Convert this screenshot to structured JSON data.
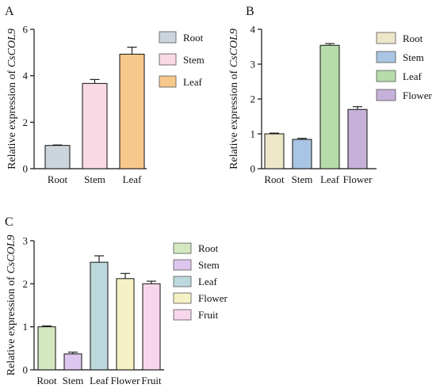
{
  "chart_data": [
    {
      "panel": "A",
      "type": "bar",
      "ylabel_prefix": "Relative expression of ",
      "ylabel_gene": "CsCOL9",
      "ylim": [
        0,
        6
      ],
      "yticks": [
        "0",
        "2",
        "4",
        "6"
      ],
      "categories": [
        "Root",
        "Stem",
        "Leaf"
      ],
      "values": [
        1.0,
        3.67,
        4.93
      ],
      "errors": [
        0.02,
        0.17,
        0.3
      ],
      "colors": [
        "#ccd4dc",
        "#f9d9e3",
        "#f7c88c"
      ],
      "legend": [
        {
          "label": "Root",
          "color": "#ccd4dc"
        },
        {
          "label": "Stem",
          "color": "#f9d9e3"
        },
        {
          "label": "Leaf",
          "color": "#f7c88c"
        }
      ],
      "legend_position": "right"
    },
    {
      "panel": "B",
      "type": "bar",
      "ylabel_prefix": "Relative expression of ",
      "ylabel_gene": "CsCOL9",
      "ylim": [
        0,
        4
      ],
      "yticks": [
        "0",
        "1",
        "2",
        "3",
        "4"
      ],
      "categories": [
        "Root",
        "Stem",
        "Leaf",
        "Flower"
      ],
      "values": [
        1.0,
        0.84,
        3.54,
        1.7
      ],
      "errors": [
        0.02,
        0.03,
        0.05,
        0.08
      ],
      "colors": [
        "#ede6c9",
        "#a9c5e3",
        "#b6dcab",
        "#c5b1d9"
      ],
      "legend": [
        {
          "label": "Root",
          "color": "#ede6c9"
        },
        {
          "label": "Stem",
          "color": "#a9c5e3"
        },
        {
          "label": "Leaf",
          "color": "#b6dcab"
        },
        {
          "label": "Flower",
          "color": "#c5b1d9"
        }
      ],
      "legend_position": "right"
    },
    {
      "panel": "C",
      "type": "bar",
      "ylabel_prefix": "Relative expression of ",
      "ylabel_gene": "CsCOL9",
      "ylim": [
        0,
        3
      ],
      "yticks": [
        "0",
        "1",
        "2",
        "3"
      ],
      "categories": [
        "Root",
        "Stem",
        "Leaf",
        "Flower",
        "Fruit"
      ],
      "values": [
        1.0,
        0.37,
        2.5,
        2.12,
        2.0
      ],
      "errors": [
        0.02,
        0.04,
        0.15,
        0.12,
        0.06
      ],
      "colors": [
        "#d3e8c0",
        "#ddc7ef",
        "#bcd9dd",
        "#f6f1c4",
        "#f7d6ec"
      ],
      "legend": [
        {
          "label": "Root",
          "color": "#d3e8c0"
        },
        {
          "label": "Stem",
          "color": "#ddc7ef"
        },
        {
          "label": "Leaf",
          "color": "#bcd9dd"
        },
        {
          "label": "Flower",
          "color": "#f6f1c4"
        },
        {
          "label": "Fruit",
          "color": "#f7d6ec"
        }
      ],
      "legend_position": "right"
    }
  ]
}
